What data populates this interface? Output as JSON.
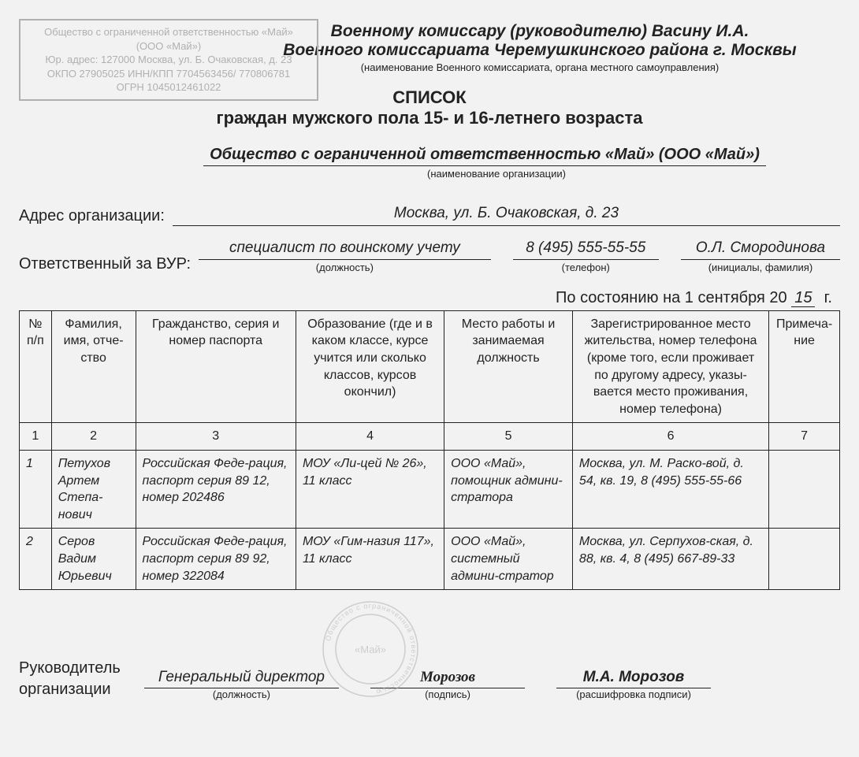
{
  "orgBox": {
    "line1": "Общество с ограниченной ответственностью «Май»",
    "line2": "(ООО «Май»)",
    "line3": "Юр. адрес: 127000 Москва, ул. Б. Очаковская, д. 23",
    "line4": "ОКПО 27905025 ИНН/КПП 7704563456/ 770806781",
    "line5": "ОГРН 1045012461022"
  },
  "addressee": {
    "line1": "Военному комиссару (руководителю) Васину И.А.",
    "line2": "Военного комиссариата Черемушкинского района г. Москвы",
    "caption": "(наименование Военного комиссариата, органа местного самоуправления)"
  },
  "title": {
    "line1": "СПИСОК",
    "line2": "граждан мужского пола 15- и 16-летнего возраста"
  },
  "orgName": {
    "value": "Общество с ограниченной ответственностью «Май» (ООО «Май»)",
    "caption": "(наименование организации)"
  },
  "address": {
    "label": "Адрес организации:",
    "value": "Москва, ул. Б. Очаковская, д. 23"
  },
  "responsible": {
    "label": "Ответственный за ВУР:",
    "position": "специалист по воинскому учету",
    "positionCaption": "(должность)",
    "phone": "8 (495) 555-55-55",
    "phoneCaption": "(телефон)",
    "name": "О.Л. Смородинова",
    "nameCaption": "(инициалы, фамилия)"
  },
  "date": {
    "prefix": "По состоянию на 1 сентября 20",
    "year": "15",
    "suffix": "г."
  },
  "table": {
    "headers": {
      "num": "№ п/п",
      "fio": "Фамилия, имя, отче-ство",
      "passport": "Гражданство, серия и номер паспорта",
      "education": "Образование (где и в каком классе, курсе учится или сколько классов, курсов окончил)",
      "work": "Место работы и занимаемая должность",
      "address": "Зарегистрированное место жительства, номер телефона (кроме того, если проживает по другому адресу, указы-вается место проживания, номер телефона)",
      "note": "Примеча-ние"
    },
    "colnums": [
      "1",
      "2",
      "3",
      "4",
      "5",
      "6",
      "7"
    ],
    "rows": [
      {
        "num": "1",
        "fio": "Петухов Артем Степа-нович",
        "passport": "Российская Феде-рация, паспорт серия 89 12, номер 202486",
        "education": "МОУ «Ли-цей № 26», 11 класс",
        "work": "ООО «Май», помощник админи-стратора",
        "address": "Москва, ул. М. Раско-вой, д. 54, кв. 19, 8 (495) 555-55-66",
        "note": ""
      },
      {
        "num": "2",
        "fio": "Серов Вадим Юрьевич",
        "passport": "Российская Феде-рация, паспорт серия 89 92, номер 322084",
        "education": "МОУ «Гим-назия 117», 11 класс",
        "work": "ООО «Май», системный админи-стратор",
        "address": "Москва, ул. Серпухов-ская, д. 88, кв. 4, 8 (495) 667-89-33",
        "note": ""
      }
    ]
  },
  "sign": {
    "leftLine1": "Руководитель",
    "leftLine2": "организации",
    "position": "Генеральный директор",
    "positionCaption": "(должность)",
    "signature": "Морозов",
    "signatureCaption": "(подпись)",
    "name": "М.А. Морозов",
    "nameCaption": "(расшифровка подписи)"
  },
  "stamp": {
    "outerText": "Общество с ограниченной ответственностью",
    "inner": "«Май»"
  },
  "style": {
    "background": "#f2f2f2",
    "text": "#222222",
    "muted": "#b0b0b0",
    "borderWidth": 1.5
  }
}
